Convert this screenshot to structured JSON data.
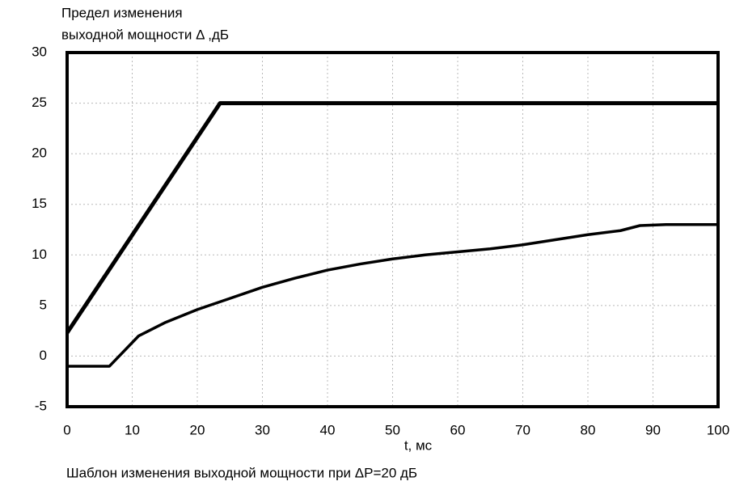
{
  "chart_data": {
    "type": "line",
    "y_label": [
      "Предел изменения",
      "выходной мощности Δ ,дБ"
    ],
    "x_label": "t, мс",
    "caption": "Шаблон изменения выходной мощности при  ΔP=20 дБ",
    "xlim": [
      0,
      100
    ],
    "xticks": [
      0,
      10,
      20,
      30,
      40,
      50,
      60,
      70,
      80,
      90,
      100
    ],
    "ylim": [
      -5,
      30
    ],
    "yticks": [
      -5,
      0,
      5,
      10,
      15,
      20,
      25,
      30
    ],
    "grid": true,
    "series": [
      {
        "color": "#000000",
        "x": [
          0,
          23.5,
          100
        ],
        "values": [
          2.3,
          25,
          25
        ]
      },
      {
        "color": "#000000",
        "x": [
          0,
          6.5,
          11,
          15,
          20,
          25,
          30,
          35,
          40,
          45,
          50,
          55,
          60,
          65,
          70,
          75,
          80,
          85,
          88,
          92,
          100
        ],
        "values": [
          -1,
          -1,
          2,
          3.3,
          4.6,
          5.7,
          6.8,
          7.7,
          8.5,
          9.1,
          9.6,
          10,
          10.3,
          10.6,
          11,
          11.5,
          12,
          12.4,
          12.9,
          13,
          13
        ]
      }
    ]
  }
}
